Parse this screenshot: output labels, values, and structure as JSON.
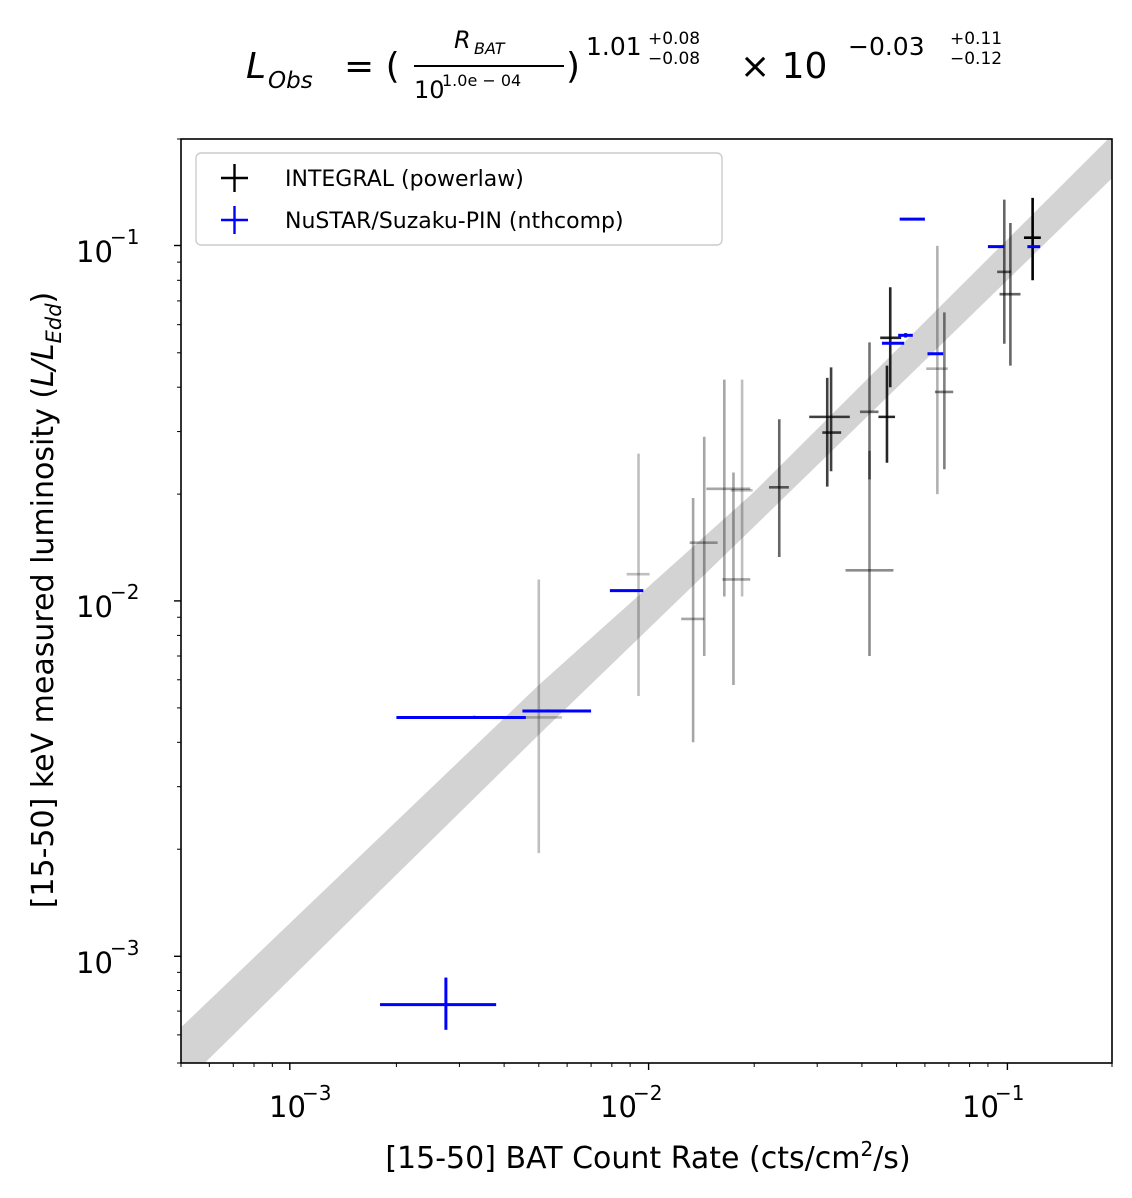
{
  "chart_data": {
    "type": "scatter",
    "title": {
      "lhs_main": "L",
      "lhs_sub": "Obs",
      "equals": "= (",
      "frac_num_main": "R",
      "frac_num_sub": "BAT",
      "frac_den_base": "10",
      "frac_den_exp": "1.0e − 04",
      "close_paren": ")",
      "exp_main": "1.01",
      "exp_up": "+0.08",
      "exp_down": "−0.08",
      "times": "× 10",
      "exp2_main": "−0.03",
      "exp2_up": "+0.11",
      "exp2_down": "−0.12"
    },
    "xlabel": "[15-50] BAT Count Rate (cts/cm²/s)",
    "ylabel": "[15-50] keV measured luminosity (L/L_Edd)",
    "xscale": "log",
    "yscale": "log",
    "xlim": [
      0.0005,
      0.2
    ],
    "ylim": [
      0.0005,
      0.2
    ],
    "x_ticks": [
      {
        "value": 0.001,
        "base": "10",
        "exp": "−3"
      },
      {
        "value": 0.01,
        "base": "10",
        "exp": "−2"
      },
      {
        "value": 0.1,
        "base": "10",
        "exp": "−1"
      }
    ],
    "y_ticks": [
      {
        "value": 0.001,
        "base": "10",
        "exp": "−3"
      },
      {
        "value": 0.01,
        "base": "10",
        "exp": "−2"
      },
      {
        "value": 0.1,
        "base": "10",
        "exp": "−1"
      }
    ],
    "legend": {
      "position": "top-left",
      "entries": [
        {
          "label": "INTEGRAL (powerlaw)",
          "color": "#000000"
        },
        {
          "label": "NuSTAR/Suzaku-PIN (nthcomp)",
          "color": "#0000ff"
        }
      ]
    },
    "fit": {
      "slope": 1.01,
      "intercept_log": -0.03,
      "x_pivot": 0.0001,
      "band_low": [
        [
          0.0005,
          0.00043
        ],
        [
          0.005,
          0.0042
        ],
        [
          0.02,
          0.0162
        ],
        [
          0.2,
          0.155
        ]
      ],
      "band_high": [
        [
          0.0005,
          0.00063
        ],
        [
          0.005,
          0.0058
        ],
        [
          0.02,
          0.0203
        ],
        [
          0.2,
          0.205
        ]
      ],
      "line_color": "#a52a2a",
      "band_color": "#d3d3d3"
    },
    "series": [
      {
        "name": "INTEGRAL (powerlaw)",
        "color": "#000000",
        "points": [
          {
            "x": 0.005,
            "xlo": 0.0045,
            "xhi": 0.0058,
            "y": 0.0047,
            "ylo": 0.00195,
            "yhi": 0.0115,
            "alpha": 0.25
          },
          {
            "x": 0.0095,
            "xlo": 0.0088,
            "xhi": 0.0102,
            "y": 0.0119,
            "ylo": 0.0054,
            "yhi": 0.026,
            "alpha": 0.25
          },
          {
            "x": 0.0135,
            "xlo": 0.0125,
            "xhi": 0.0145,
            "y": 0.0089,
            "ylo": 0.004,
            "yhi": 0.0195,
            "alpha": 0.35
          },
          {
            "x": 0.0145,
            "xlo": 0.0132,
            "xhi": 0.0158,
            "y": 0.0146,
            "ylo": 0.007,
            "yhi": 0.029,
            "alpha": 0.35
          },
          {
            "x": 0.0165,
            "xlo": 0.0147,
            "xhi": 0.0195,
            "y": 0.0207,
            "ylo": 0.0103,
            "yhi": 0.042,
            "alpha": 0.35
          },
          {
            "x": 0.0175,
            "xlo": 0.0163,
            "xhi": 0.0195,
            "y": 0.0115,
            "ylo": 0.0058,
            "yhi": 0.023,
            "alpha": 0.35
          },
          {
            "x": 0.0185,
            "xlo": 0.0172,
            "xhi": 0.0198,
            "y": 0.0205,
            "ylo": 0.0103,
            "yhi": 0.042,
            "alpha": 0.25
          },
          {
            "x": 0.0235,
            "xlo": 0.022,
            "xhi": 0.025,
            "y": 0.0209,
            "ylo": 0.0133,
            "yhi": 0.0325,
            "alpha": 0.6
          },
          {
            "x": 0.032,
            "xlo": 0.0285,
            "xhi": 0.037,
            "y": 0.033,
            "ylo": 0.021,
            "yhi": 0.0425,
            "alpha": 0.75
          },
          {
            "x": 0.0328,
            "xlo": 0.031,
            "xhi": 0.035,
            "y": 0.0298,
            "ylo": 0.0232,
            "yhi": 0.0455,
            "alpha": 0.75
          },
          {
            "x": 0.042,
            "xlo": 0.036,
            "xhi": 0.049,
            "y": 0.0122,
            "ylo": 0.007,
            "yhi": 0.0265,
            "alpha": 0.45
          },
          {
            "x": 0.042,
            "xlo": 0.0395,
            "xhi": 0.0445,
            "y": 0.0341,
            "ylo": 0.022,
            "yhi": 0.0535,
            "alpha": 0.55
          },
          {
            "x": 0.047,
            "xlo": 0.0445,
            "xhi": 0.0495,
            "y": 0.033,
            "ylo": 0.0245,
            "yhi": 0.046,
            "alpha": 0.85
          },
          {
            "x": 0.048,
            "xlo": 0.045,
            "xhi": 0.0515,
            "y": 0.0551,
            "ylo": 0.04,
            "yhi": 0.0765,
            "alpha": 0.85
          },
          {
            "x": 0.065,
            "xlo": 0.0605,
            "xhi": 0.0695,
            "y": 0.0451,
            "ylo": 0.02,
            "yhi": 0.1,
            "alpha": 0.3
          },
          {
            "x": 0.068,
            "xlo": 0.064,
            "xhi": 0.072,
            "y": 0.0388,
            "ylo": 0.0235,
            "yhi": 0.065,
            "alpha": 0.5
          },
          {
            "x": 0.1,
            "xlo": 0.0955,
            "xhi": 0.1045,
            "y": 0.0845,
            "ylo": 0.053,
            "yhi": 0.135,
            "alpha": 0.6
          },
          {
            "x": 0.104,
            "xlo": 0.097,
            "xhi": 0.111,
            "y": 0.0731,
            "ylo": 0.046,
            "yhi": 0.116,
            "alpha": 0.6
          },
          {
            "x": 0.12,
            "xlo": 0.1135,
            "xhi": 0.1265,
            "y": 0.1055,
            "ylo": 0.08,
            "yhi": 0.1365,
            "alpha": 1.0
          }
        ]
      },
      {
        "name": "NuSTAR/Suzaku-PIN (nthcomp)",
        "color": "#0000ff",
        "points": [
          {
            "x": 0.00275,
            "xlo": 0.0018,
            "xhi": 0.0038,
            "y": 0.00073,
            "ylo": 0.00062,
            "yhi": 0.00087
          },
          {
            "x": 0.0033,
            "xlo": 0.002,
            "xhi": 0.0046,
            "y": 0.0047,
            "ylo": 0.00466,
            "yhi": 0.00475
          },
          {
            "x": 0.0053,
            "xlo": 0.0045,
            "xhi": 0.007,
            "y": 0.0049,
            "ylo": 0.00486,
            "yhi": 0.00495
          },
          {
            "x": 0.0088,
            "xlo": 0.0079,
            "xhi": 0.0098,
            "y": 0.0107,
            "ylo": 0.0107,
            "yhi": 0.0107
          },
          {
            "x": 0.049,
            "xlo": 0.0455,
            "xhi": 0.0525,
            "y": 0.0532,
            "ylo": 0.0532,
            "yhi": 0.0532
          },
          {
            "x": 0.053,
            "xlo": 0.0505,
            "xhi": 0.0555,
            "y": 0.056,
            "ylo": 0.0552,
            "yhi": 0.0568
          },
          {
            "x": 0.0555,
            "xlo": 0.051,
            "xhi": 0.06,
            "y": 0.119,
            "ylo": 0.119,
            "yhi": 0.119
          },
          {
            "x": 0.064,
            "xlo": 0.061,
            "xhi": 0.0675,
            "y": 0.0497,
            "ylo": 0.0497,
            "yhi": 0.0497
          },
          {
            "x": 0.095,
            "xlo": 0.09,
            "xhi": 0.1,
            "y": 0.0995,
            "ylo": 0.0995,
            "yhi": 0.0995
          },
          {
            "x": 0.121,
            "xlo": 0.116,
            "xhi": 0.126,
            "y": 0.0995,
            "ylo": 0.0995,
            "yhi": 0.0995
          }
        ]
      }
    ]
  }
}
